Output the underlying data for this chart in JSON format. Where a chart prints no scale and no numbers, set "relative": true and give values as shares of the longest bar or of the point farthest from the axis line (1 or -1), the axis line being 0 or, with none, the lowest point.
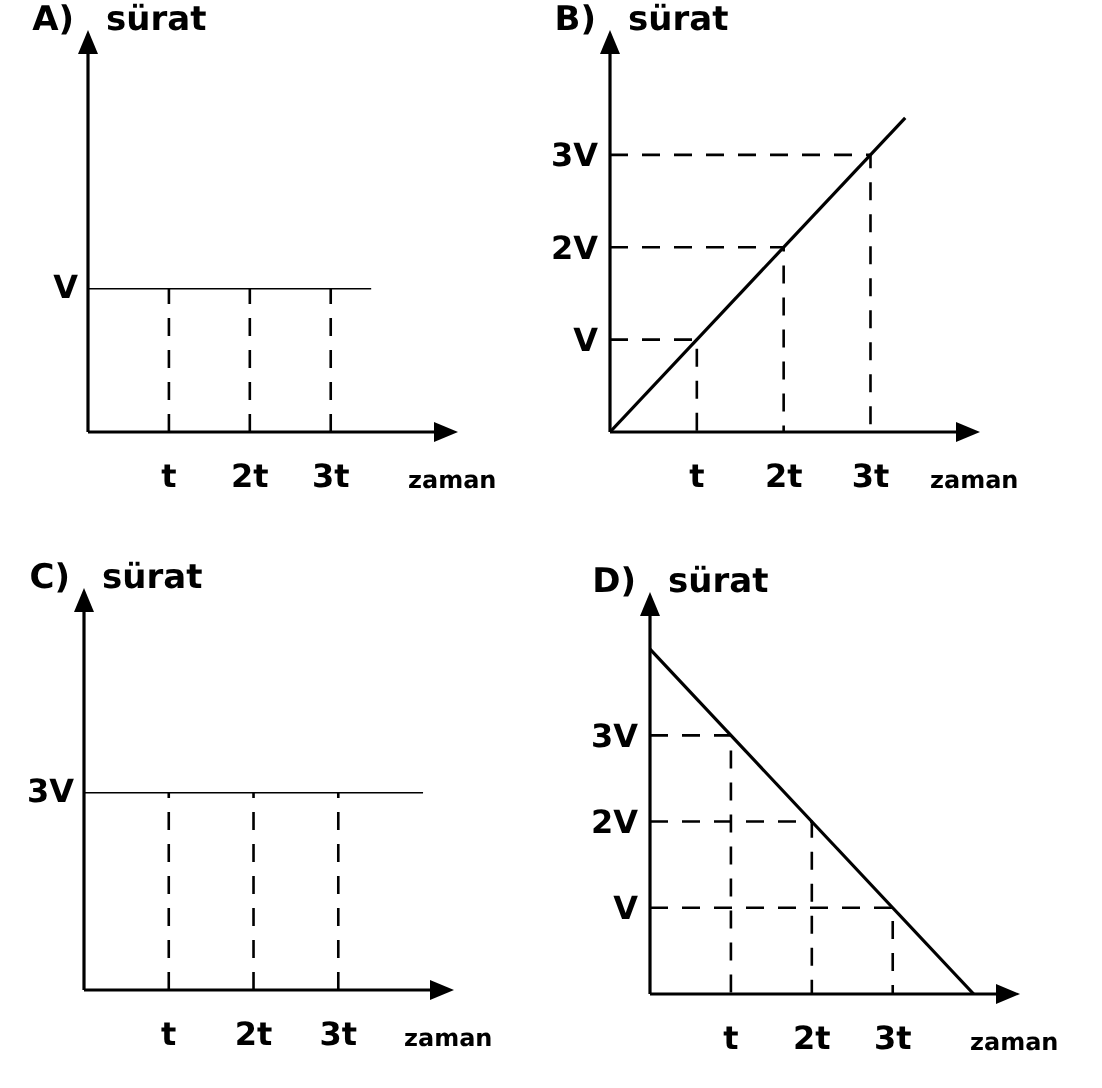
{
  "chart_data": [
    {
      "type": "line",
      "title": "A)",
      "xlabel": "zaman",
      "ylabel": "sürat",
      "relative": true,
      "xlim": [
        0,
        4.4
      ],
      "xticks": [
        {
          "value": 1,
          "label": "t"
        },
        {
          "value": 2,
          "label": "2t"
        },
        {
          "value": 3,
          "label": "3t"
        }
      ],
      "annotations": [
        {
          "text": "V",
          "x": 0,
          "y": 1
        }
      ],
      "marker": "none",
      "series": [
        {
          "color": "#000000",
          "line_style": "solid",
          "x": [
            0,
            3.5
          ],
          "values": [
            1,
            1
          ]
        },
        {
          "color": "#000000",
          "line_style": "dashed",
          "x": [
            1,
            1
          ],
          "values": [
            0,
            1
          ]
        },
        {
          "color": "#000000",
          "line_style": "dashed",
          "x": [
            2,
            2
          ],
          "values": [
            0,
            1
          ]
        },
        {
          "color": "#000000",
          "line_style": "dashed",
          "x": [
            3,
            3
          ],
          "values": [
            0,
            1
          ]
        }
      ]
    },
    {
      "type": "line",
      "title": "B)",
      "xlabel": "zaman",
      "ylabel": "sürat",
      "xlim": [
        0,
        4.1
      ],
      "ylim": [
        0,
        4.2
      ],
      "xticks": [
        {
          "value": 1,
          "label": "t"
        },
        {
          "value": 2,
          "label": "2t"
        },
        {
          "value": 3,
          "label": "3t"
        }
      ],
      "yticks": [
        {
          "value": 1,
          "label": "V"
        },
        {
          "value": 2,
          "label": "2V"
        },
        {
          "value": 3,
          "label": "3V"
        }
      ],
      "marker": "none",
      "series": [
        {
          "color": "#000000",
          "line_style": "solid",
          "x": [
            0,
            3.4
          ],
          "values": [
            0,
            3.4
          ]
        },
        {
          "color": "#000000",
          "line_style": "dashed",
          "x": [
            0,
            1,
            1
          ],
          "values": [
            1,
            1,
            0
          ]
        },
        {
          "color": "#000000",
          "line_style": "dashed",
          "x": [
            0,
            2,
            2
          ],
          "values": [
            2,
            2,
            0
          ]
        },
        {
          "color": "#000000",
          "line_style": "dashed",
          "x": [
            0,
            3,
            3
          ],
          "values": [
            3,
            3,
            0
          ]
        }
      ]
    },
    {
      "type": "line",
      "title": "C)",
      "xlabel": "zaman",
      "ylabel": "sürat",
      "relative": true,
      "xlim": [
        0,
        4.2
      ],
      "xticks": [
        {
          "value": 1,
          "label": "t"
        },
        {
          "value": 2,
          "label": "2t"
        },
        {
          "value": 3,
          "label": "3t"
        }
      ],
      "annotations": [
        {
          "text": "3V",
          "x": 0,
          "y": 1
        }
      ],
      "marker": "none",
      "series": [
        {
          "color": "#000000",
          "line_style": "solid",
          "x": [
            0,
            4
          ],
          "values": [
            1,
            1
          ]
        },
        {
          "color": "#000000",
          "line_style": "dashed",
          "x": [
            1,
            1
          ],
          "values": [
            0,
            1
          ]
        },
        {
          "color": "#000000",
          "line_style": "dashed",
          "x": [
            2,
            2
          ],
          "values": [
            0,
            1
          ]
        },
        {
          "color": "#000000",
          "line_style": "dashed",
          "x": [
            3,
            3
          ],
          "values": [
            0,
            1
          ]
        }
      ]
    },
    {
      "type": "line",
      "title": "D)",
      "xlabel": "zaman",
      "ylabel": "sürat",
      "xlim": [
        0,
        4.4
      ],
      "ylim": [
        0,
        4.5
      ],
      "xticks": [
        {
          "value": 1,
          "label": "t"
        },
        {
          "value": 2,
          "label": "2t"
        },
        {
          "value": 3,
          "label": "3t"
        }
      ],
      "yticks": [
        {
          "value": 1,
          "label": "V"
        },
        {
          "value": 2,
          "label": "2V"
        },
        {
          "value": 3,
          "label": "3V"
        }
      ],
      "marker": "none",
      "series": [
        {
          "color": "#000000",
          "line_style": "solid",
          "x": [
            0,
            4
          ],
          "values": [
            4,
            0
          ]
        },
        {
          "color": "#000000",
          "line_style": "dashed",
          "x": [
            0,
            1,
            1
          ],
          "values": [
            3,
            3,
            0
          ]
        },
        {
          "color": "#000000",
          "line_style": "dashed",
          "x": [
            0,
            2,
            2
          ],
          "values": [
            2,
            2,
            0
          ]
        },
        {
          "color": "#000000",
          "line_style": "dashed",
          "x": [
            0,
            3,
            3
          ],
          "values": [
            1,
            1,
            0
          ]
        }
      ]
    }
  ]
}
